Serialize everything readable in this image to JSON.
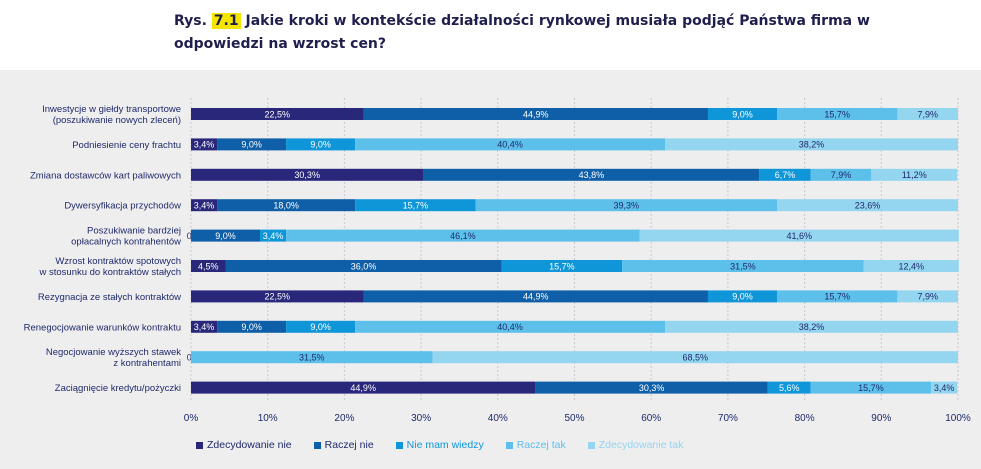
{
  "header": {
    "prefix": "Rys.",
    "figure_number": "7.1",
    "text": "Jakie kroki w kontekście działalności rynkowej musiała podjąć Państwa firma w odpowiedzi na wzrost cen?"
  },
  "colors": {
    "series": [
      "#29277a",
      "#0f5fa8",
      "#0f96d8",
      "#5cc0ea",
      "#94d5f0"
    ],
    "accent_highlight": "#f5e500",
    "panel_background": "#eeeeef",
    "text": "#1f2a6b"
  },
  "chart_data": {
    "type": "bar",
    "orientation": "horizontal",
    "stacked": true,
    "categories": [
      "Inwestycje w giełdy transportowe (poszukiwanie nowych zleceń)",
      "Podniesienie ceny frachtu",
      "Zmiana dostawców kart paliwowych",
      "Dywersyfikacja przychodów",
      "Poszukiwanie bardziej opłacalnych kontrahentów",
      "Wzrost kontraktów spotowych w stosunku do kontraktów stałych",
      "Rezygnacja ze stałych kontraktów",
      "Renegocjowanie warunków kontraktu",
      "Negocjowanie wyższych stawek z kontrahentami",
      "Zaciągnięcie kredytu/pożyczki"
    ],
    "category_lines": [
      [
        "Inwestycje w giełdy transportowe",
        "(poszukiwanie nowych zleceń)"
      ],
      [
        "Podniesienie ceny frachtu"
      ],
      [
        "Zmiana dostawców kart paliwowych"
      ],
      [
        "Dywersyfikacja przychodów"
      ],
      [
        "Poszukiwanie bardziej",
        "opłacalnych kontrahentów"
      ],
      [
        "Wzrost kontraktów spotowych",
        "w stosunku do kontraktów stałych"
      ],
      [
        "Rezygnacja ze stałych kontraktów"
      ],
      [
        "Renegocjowanie warunków kontraktu"
      ],
      [
        "Negocjowanie wyższych stawek",
        "z kontrahentami"
      ],
      [
        "Zaciągnięcie kredytu/pożyczki"
      ]
    ],
    "series": [
      {
        "name": "Zdecydowanie nie",
        "values": [
          22.5,
          3.4,
          30.3,
          3.4,
          0.0,
          4.5,
          22.5,
          3.4,
          0.0,
          44.9
        ]
      },
      {
        "name": "Raczej nie",
        "values": [
          44.9,
          9.0,
          43.8,
          18.0,
          9.0,
          36.0,
          44.9,
          9.0,
          null,
          30.3
        ]
      },
      {
        "name": "Nie mam wiedzy",
        "values": [
          9.0,
          9.0,
          6.7,
          15.7,
          3.4,
          15.7,
          9.0,
          9.0,
          null,
          5.6
        ]
      },
      {
        "name": "Raczej tak",
        "values": [
          15.7,
          40.4,
          7.9,
          39.3,
          46.1,
          31.5,
          15.7,
          40.4,
          31.5,
          15.7
        ]
      },
      {
        "name": "Zdecydowanie tak",
        "values": [
          7.9,
          38.2,
          11.2,
          23.6,
          41.6,
          12.4,
          7.9,
          38.2,
          68.5,
          3.4
        ]
      }
    ],
    "value_labels": [
      [
        "22,5%",
        "44,9%",
        "9,0%",
        "15,7%",
        "7,9%"
      ],
      [
        "3,4%",
        "9,0%",
        "9,0%",
        "40,4%",
        "38,2%"
      ],
      [
        "30,3%",
        "43,8%",
        "6,7%",
        "7,9%",
        "11,2%"
      ],
      [
        "3,4%",
        "18,0%",
        "15,7%",
        "39,3%",
        "23,6%"
      ],
      [
        "0,0%",
        "9,0%",
        "3,4%",
        "46,1%",
        "41,6%"
      ],
      [
        "4,5%",
        "36,0%",
        "15,7%",
        "31,5%",
        "12,4%"
      ],
      [
        "22,5%",
        "44,9%",
        "9,0%",
        "15,7%",
        "7,9%"
      ],
      [
        "3,4%",
        "9,0%",
        "9,0%",
        "40,4%",
        "38,2%"
      ],
      [
        "0,0%",
        "",
        "",
        "31,5%",
        "68,5%"
      ],
      [
        "44,9%",
        "30,3%",
        "5,6%",
        "15,7%",
        "3,4%"
      ]
    ],
    "xlim": [
      0,
      100
    ],
    "x_ticks": [
      "0%",
      "10%",
      "20%",
      "30%",
      "40%",
      "50%",
      "60%",
      "70%",
      "80%",
      "90%",
      "100%"
    ],
    "grid": true,
    "legend_position": "bottom"
  }
}
